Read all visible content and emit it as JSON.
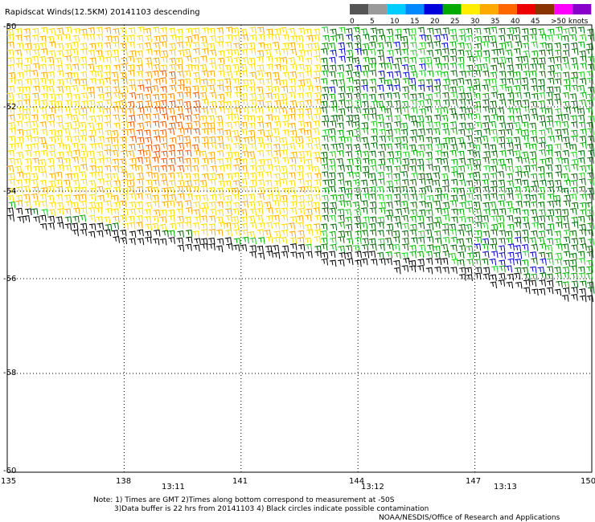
{
  "title": "Rapidscat Winds(12.5KM) 20141103 descending",
  "legend": {
    "colors": [
      "#555555",
      "#9a9a9a",
      "#00ccff",
      "#0088ff",
      "#0000dd",
      "#00aa00",
      "#ffee00",
      "#ffaa00",
      "#ff6600",
      "#ee0000",
      "#883300",
      "#ff00ff",
      "#8800cc"
    ],
    "labels": [
      "0",
      "5",
      "10",
      "15",
      "20",
      "25",
      "30",
      "35",
      "40",
      "45",
      ">50 knots"
    ]
  },
  "axes": {
    "lon_ticks": [
      "135",
      "138",
      "141",
      "144",
      "147",
      "150"
    ],
    "lat_ticks": [
      "-50",
      "-52",
      "-54",
      "-56",
      "-58",
      "-60"
    ],
    "lon_range": [
      135,
      150
    ],
    "lat_range": [
      -60,
      -50
    ]
  },
  "times": [
    {
      "label": "13:11",
      "lon": 139.3
    },
    {
      "label": "13:12",
      "lon": 144.4
    },
    {
      "label": "13:13",
      "lon": 147.8
    }
  ],
  "notes": {
    "line1": "Note: 1) Times are GMT 2)Times along bottom correspond to measurement at -50S",
    "line2": "3)Data buffer is 22 hrs from 20141103 4) Black circles indicate possible contamination",
    "credit": "NOAA/NESDIS/Office of Research and Applications"
  },
  "colors": {
    "time_label": "#800080",
    "grid": "#000000"
  }
}
